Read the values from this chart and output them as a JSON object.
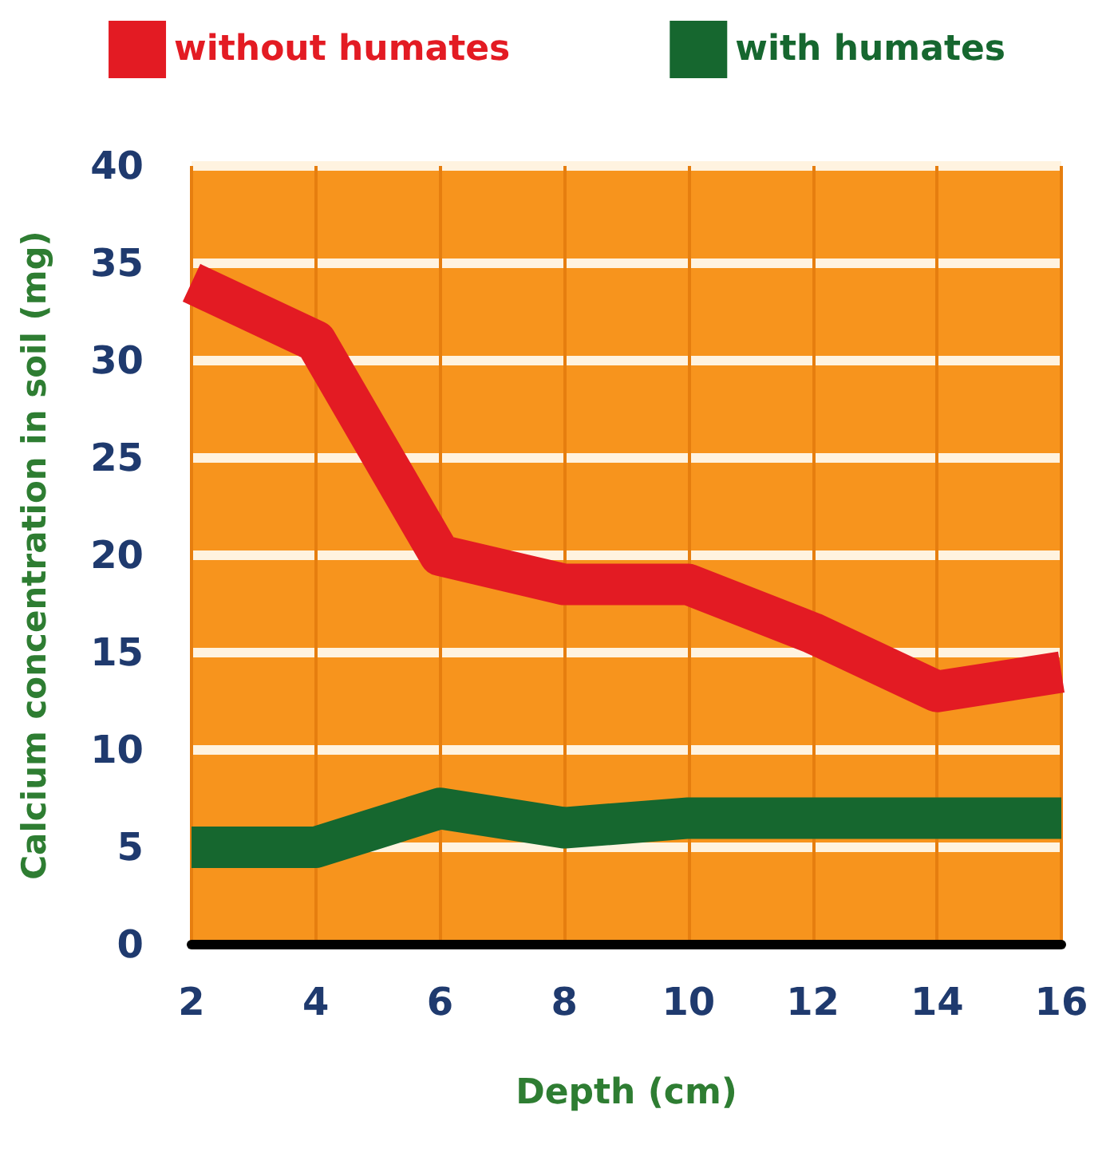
{
  "chart_data": {
    "type": "line",
    "xlabel": "Depth (cm)",
    "ylabel": "Calcium concentration in soil (mg)",
    "x": [
      2,
      4,
      6,
      8,
      10,
      12,
      14,
      16
    ],
    "series": [
      {
        "name": "without humates",
        "color": "#e31b23",
        "values": [
          34,
          31,
          20,
          18.5,
          18.5,
          16,
          13,
          14
        ]
      },
      {
        "name": "with humates",
        "color": "#16672f",
        "values": [
          5,
          5,
          7,
          6,
          6.5,
          6.5,
          6.5,
          6.5
        ]
      }
    ],
    "xlim": [
      2,
      16
    ],
    "xticks": [
      2,
      4,
      6,
      8,
      10,
      12,
      14,
      16
    ],
    "ylim": [
      0,
      40
    ],
    "yticks": [
      0,
      5,
      10,
      15,
      20,
      25,
      30,
      35,
      40
    ],
    "grid": true,
    "legend": "top",
    "marker": "none",
    "line_style": "solid"
  }
}
